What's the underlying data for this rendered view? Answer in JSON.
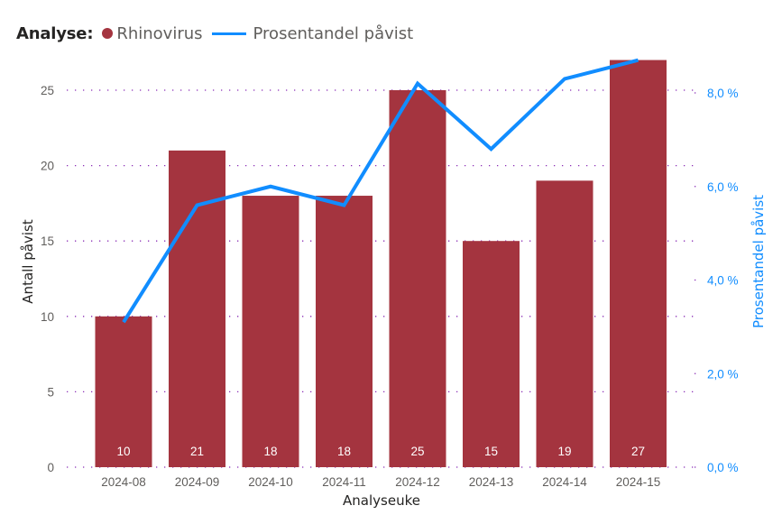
{
  "legend": {
    "title": "Analyse:",
    "items": [
      {
        "label": "Rhinovirus",
        "shape": "circle",
        "color": "#A4343F"
      },
      {
        "label": "Prosentandel påvist",
        "shape": "line",
        "color": "#118DFF"
      }
    ]
  },
  "axes": {
    "x_title": "Analyseuke",
    "y_left_title": "Antall påvist",
    "y_right_title": "Prosentandel påvist",
    "y_left_ticks": [
      "0",
      "5",
      "10",
      "15",
      "20",
      "25"
    ],
    "y_right_ticks": [
      "0,0 %",
      "2,0 %",
      "4,0 %",
      "6,0 %",
      "8,0 %"
    ]
  },
  "colors": {
    "bar": "#A4343F",
    "line": "#118DFF",
    "grid": "#8B2FB6",
    "tick_text": "#605E5C",
    "right_tick_text": "#118DFF"
  },
  "chart_data": {
    "type": "bar+line",
    "title": "",
    "legend_title": "Analyse:",
    "xlabel": "Analyseuke",
    "ylabel": "Antall påvist",
    "y2label": "Prosentandel påvist",
    "categories": [
      "2024-08",
      "2024-09",
      "2024-10",
      "2024-11",
      "2024-12",
      "2024-13",
      "2024-14",
      "2024-15"
    ],
    "series": [
      {
        "name": "Rhinovirus",
        "type": "bar",
        "axis": "left",
        "values": [
          10,
          21,
          18,
          18,
          25,
          15,
          19,
          27
        ],
        "color": "#A4343F"
      },
      {
        "name": "Prosentandel påvist",
        "type": "line",
        "axis": "right",
        "unit": "%",
        "values": [
          3.1,
          5.6,
          6.0,
          5.6,
          8.2,
          6.8,
          8.3,
          8.7
        ],
        "color": "#118DFF"
      }
    ],
    "ylim": [
      0,
      27
    ],
    "y2lim": [
      0,
      8.7
    ],
    "y_ticks": [
      0,
      5,
      10,
      15,
      20,
      25
    ],
    "y2_ticks": [
      0,
      2,
      4,
      6,
      8
    ],
    "grid": true,
    "legend_position": "top-left",
    "data_labels": true
  }
}
